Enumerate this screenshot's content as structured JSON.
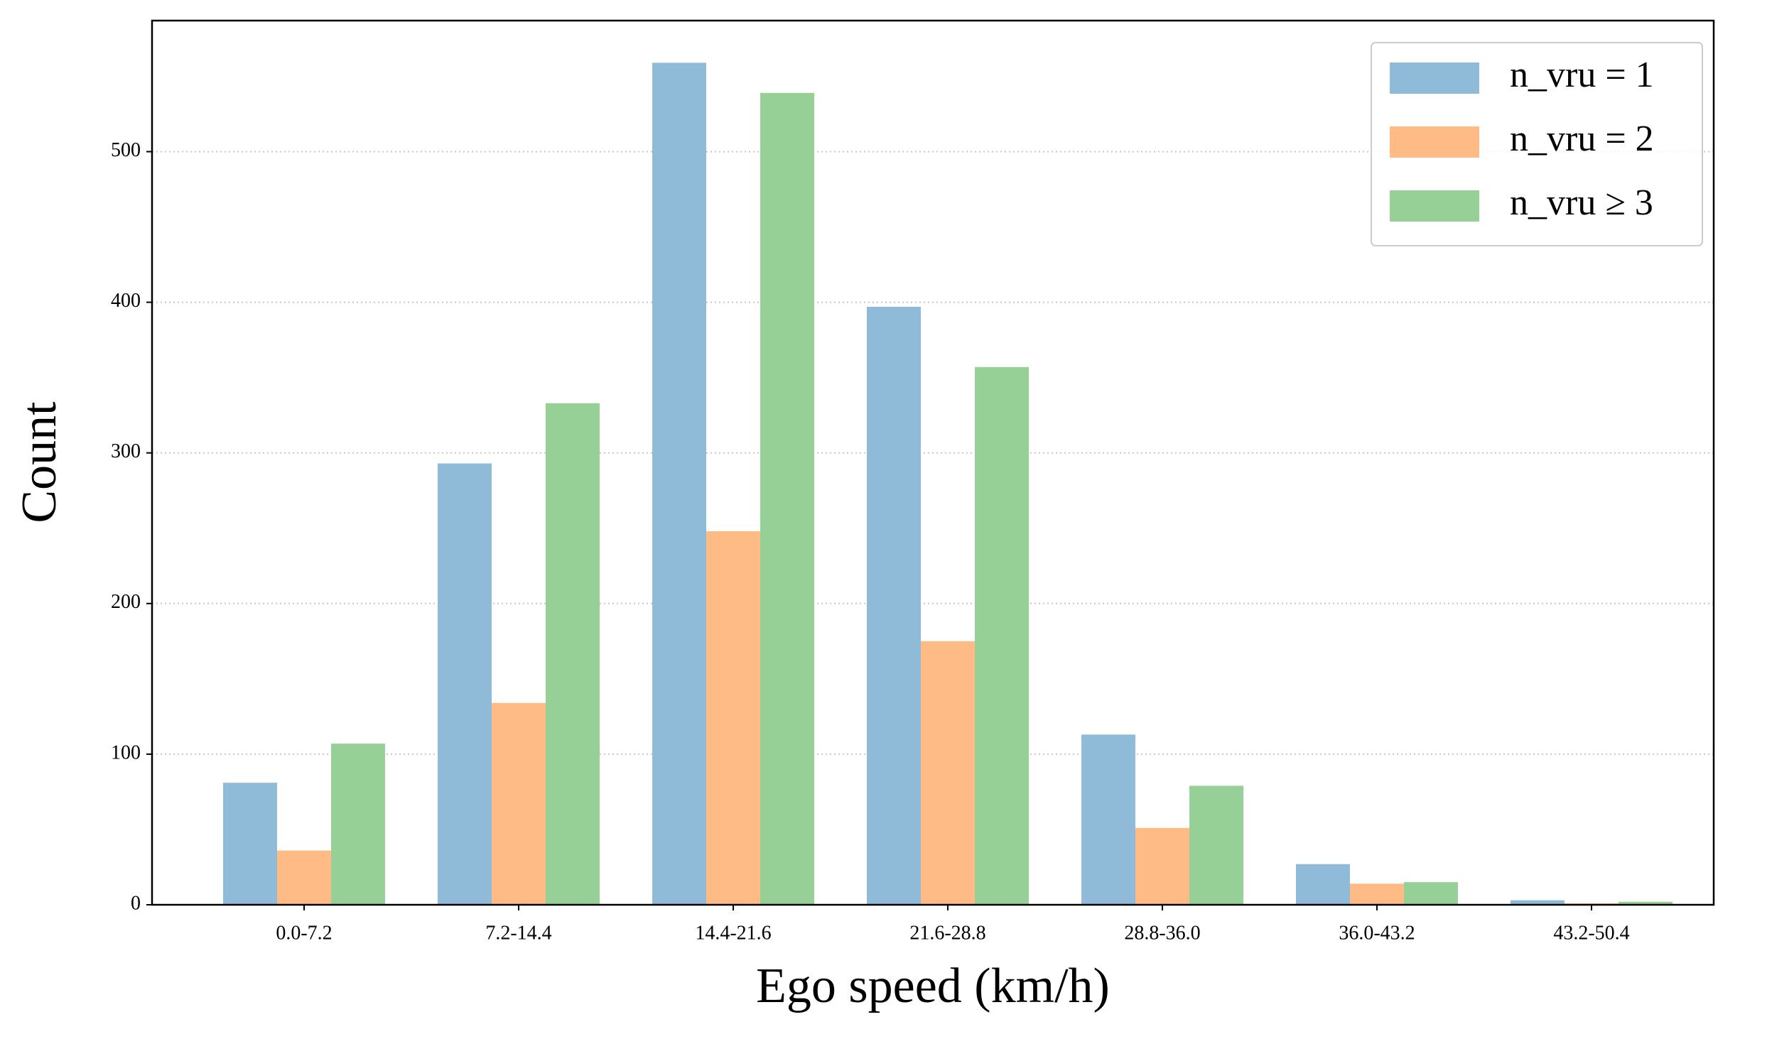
{
  "chart_data": {
    "type": "bar",
    "xlabel": "Ego speed (km/h)",
    "ylabel": "Count",
    "categories": [
      "0.0-7.2",
      "7.2-14.4",
      "14.4-21.6",
      "21.6-28.8",
      "28.8-36.0",
      "36.0-43.2",
      "43.2-50.4"
    ],
    "series": [
      {
        "name": "n_vru = 1",
        "color": "#8fbbd9",
        "values": [
          81,
          293,
          559,
          397,
          113,
          27,
          3
        ]
      },
      {
        "name": "n_vru = 2",
        "color": "#ffbb86",
        "values": [
          36,
          134,
          248,
          175,
          51,
          14,
          1
        ]
      },
      {
        "name": "n_vru ≥ 3",
        "color": "#96d096",
        "values": [
          107,
          333,
          539,
          357,
          79,
          15,
          2
        ]
      }
    ],
    "ylim": [
      0,
      587
    ],
    "yticks": [
      0,
      100,
      200,
      300,
      400,
      500
    ],
    "grid": true,
    "legend": "upper right"
  }
}
